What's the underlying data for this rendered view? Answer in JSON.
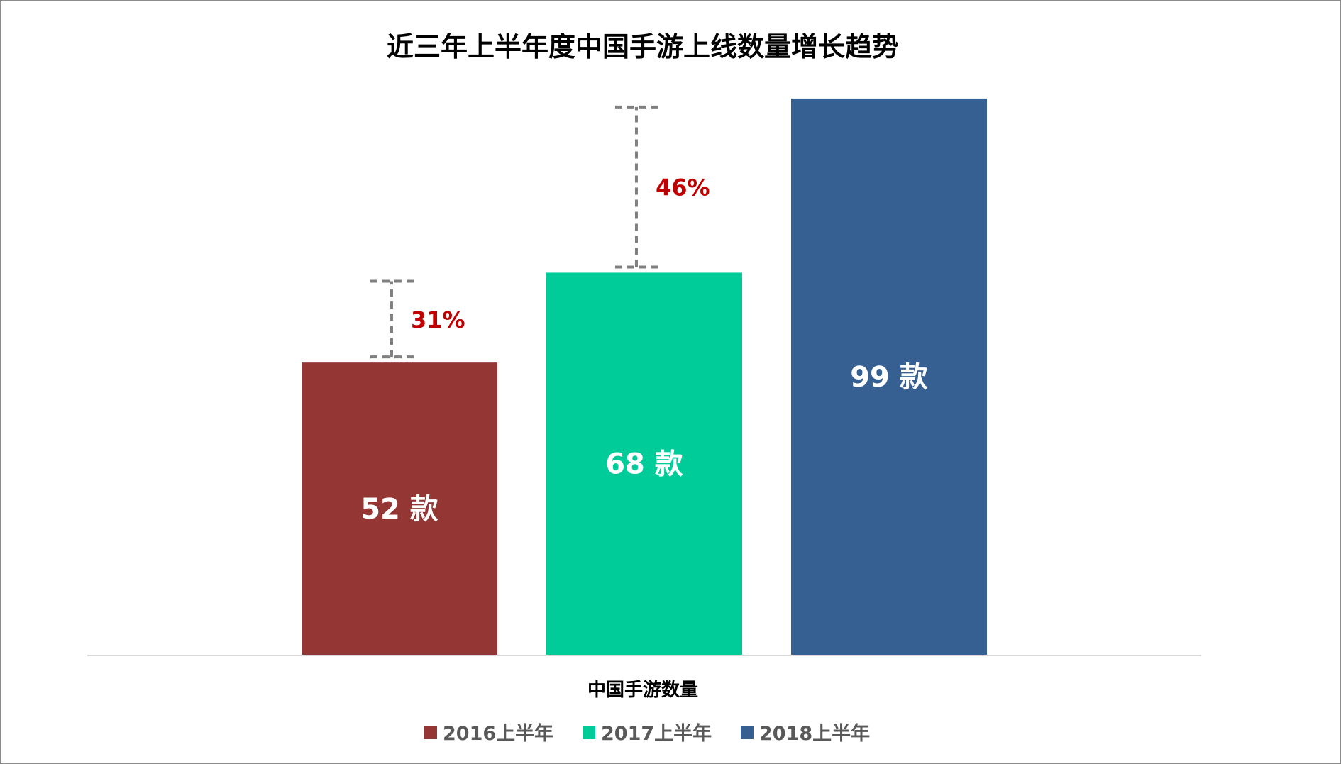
{
  "chart_data": {
    "type": "bar",
    "title": "近三年上半年度中国手游上线数量增长趋势",
    "category": "中国手游数量",
    "unit": "款",
    "series": [
      {
        "name": "2016上半年",
        "value": 52,
        "label": "52 款",
        "color": "#943634"
      },
      {
        "name": "2017上半年",
        "value": 68,
        "label": "68 款",
        "color": "#00cc99"
      },
      {
        "name": "2018上半年",
        "value": 99,
        "label": "99 款",
        "color": "#366092"
      }
    ],
    "growth": [
      {
        "from": "2016上半年",
        "to": "2017上半年",
        "label": "31%"
      },
      {
        "from": "2017上半年",
        "to": "2018上半年",
        "label": "46%"
      }
    ],
    "ylim": [
      0,
      100
    ],
    "grid": false,
    "legend_position": "bottom",
    "growth_color": "#c00000",
    "axis_color": "#d9d9d9",
    "bracket_color": "#7f7f7f"
  }
}
